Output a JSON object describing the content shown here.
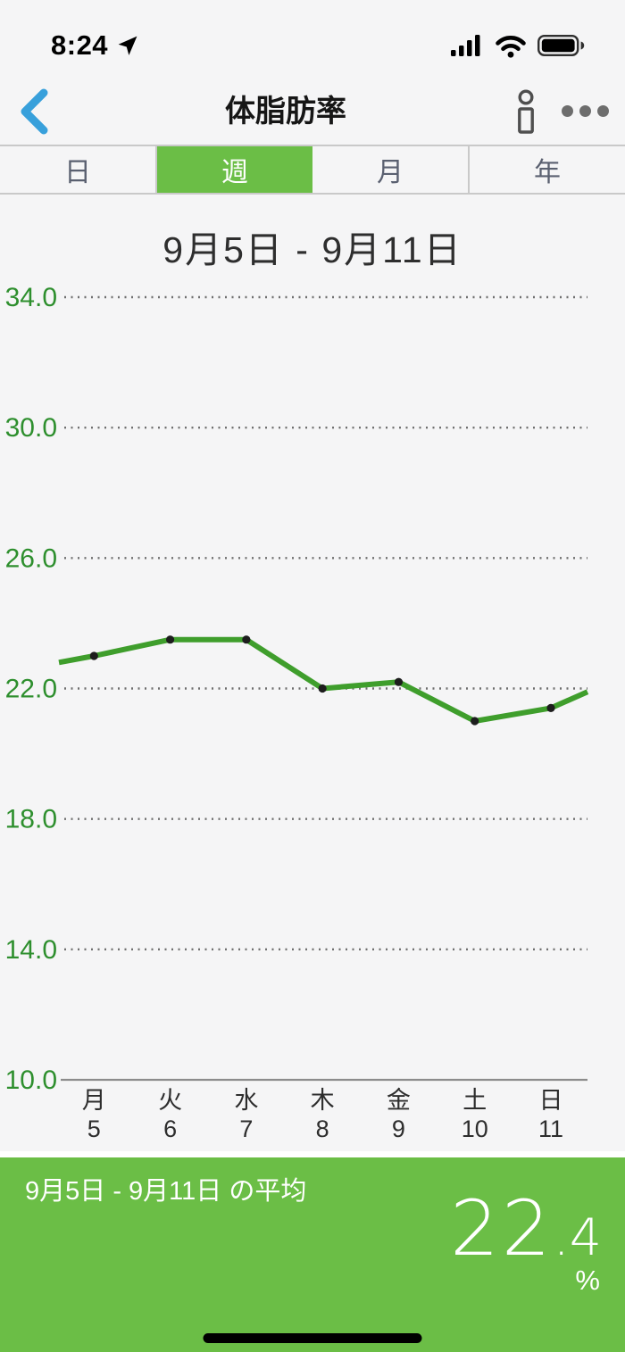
{
  "status_bar": {
    "time": "8:24"
  },
  "nav": {
    "title": "体脂肪率"
  },
  "tabs": {
    "items": [
      "日",
      "週",
      "月",
      "年"
    ],
    "item_names": [
      "day",
      "week",
      "month",
      "year"
    ],
    "selected_index": 1
  },
  "chart_data": {
    "type": "line",
    "title": "9月5日 - 9月11日",
    "y_ticks": [
      "34.0",
      "30.0",
      "26.0",
      "22.0",
      "18.0",
      "14.0",
      "10.0"
    ],
    "ylim": [
      10,
      34
    ],
    "grid": "dotted horizontal, solid baseline",
    "legend_position": "none",
    "categories": [
      {
        "weekday": "月",
        "day": "5"
      },
      {
        "weekday": "火",
        "day": "6"
      },
      {
        "weekday": "水",
        "day": "7"
      },
      {
        "weekday": "木",
        "day": "8"
      },
      {
        "weekday": "金",
        "day": "9"
      },
      {
        "weekday": "土",
        "day": "10"
      },
      {
        "weekday": "日",
        "day": "11"
      }
    ],
    "series": [
      {
        "name": "体脂肪率",
        "values": [
          23.0,
          23.5,
          23.5,
          22.0,
          22.2,
          21.0,
          21.4
        ]
      }
    ],
    "edge_values": {
      "start": 22.8,
      "end": 21.9
    }
  },
  "summary": {
    "label": "9月5日 - 9月11日 の平均",
    "value": "22.4",
    "unit": "%"
  },
  "colors": {
    "accent_green": "#6bbe46",
    "line_green": "#3f9e2c",
    "tick_green": "#2e8f2e",
    "point_dark": "#1d1d1d",
    "back_blue": "#38a0db",
    "grid_dot": "#6f6f6f",
    "axis_gray": "#8c8c8c"
  }
}
